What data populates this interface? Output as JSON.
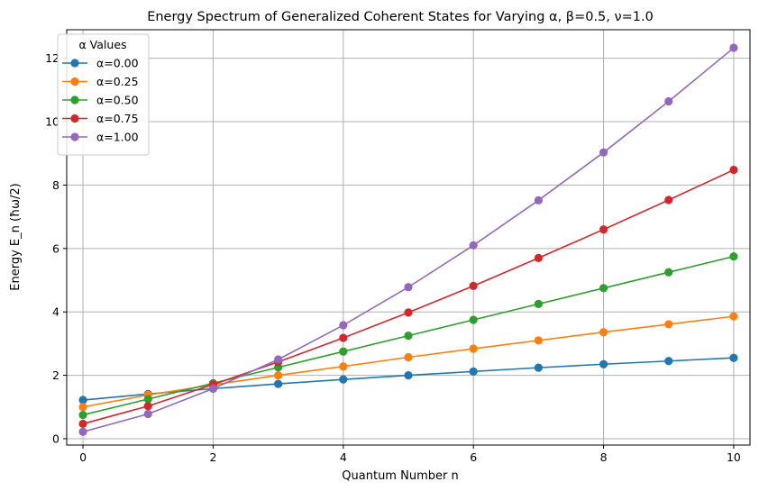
{
  "chart_data": {
    "type": "line",
    "title": "Energy Spectrum of Generalized Coherent States for Varying α,  β=0.5, ν=1.0",
    "xlabel": "Quantum Number n",
    "ylabel": "Energy E_n (ħω/2)",
    "xlim": [
      -0.25,
      10.25
    ],
    "ylim": [
      -0.2,
      12.9
    ],
    "xticks": [
      0,
      2,
      4,
      6,
      8,
      10
    ],
    "yticks": [
      0,
      2,
      4,
      6,
      8,
      10,
      12
    ],
    "grid": true,
    "legend_title": "α Values",
    "legend_position": "top-left",
    "x": [
      0,
      1,
      2,
      3,
      4,
      5,
      6,
      7,
      8,
      9,
      10
    ],
    "series": [
      {
        "name": "α=0.00",
        "color": "#1f77b4",
        "values": [
          1.22,
          1.41,
          1.58,
          1.73,
          1.87,
          2.0,
          2.12,
          2.24,
          2.35,
          2.45,
          2.55
        ]
      },
      {
        "name": "α=0.25",
        "color": "#ff7f0e",
        "values": [
          1.0,
          1.38,
          1.7,
          2.0,
          2.28,
          2.57,
          2.84,
          3.1,
          3.36,
          3.61,
          3.86
        ]
      },
      {
        "name": "α=0.50",
        "color": "#2ca02c",
        "values": [
          0.75,
          1.25,
          1.75,
          2.25,
          2.75,
          3.25,
          3.75,
          4.25,
          4.75,
          5.25,
          5.75
        ]
      },
      {
        "name": "α=0.75",
        "color": "#d62728",
        "values": [
          0.47,
          1.03,
          1.71,
          2.42,
          3.18,
          3.98,
          4.82,
          5.7,
          6.6,
          7.53,
          8.48
        ]
      },
      {
        "name": "α=1.00",
        "color": "#9467bd",
        "values": [
          0.22,
          0.78,
          1.58,
          2.5,
          3.58,
          4.78,
          6.1,
          7.52,
          9.03,
          10.64,
          12.33
        ]
      }
    ]
  }
}
